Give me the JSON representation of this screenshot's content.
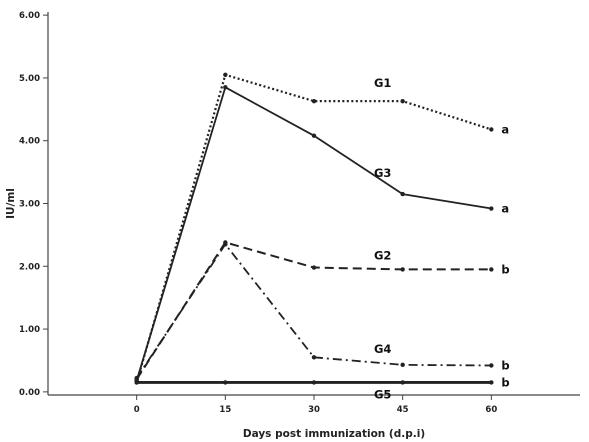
{
  "chart_data": {
    "type": "line",
    "title": "",
    "xlabel": "Days post immunization (d.p.i)",
    "ylabel": "IU/ml",
    "x": [
      0,
      15,
      30,
      45,
      60
    ],
    "xticks": [
      "0",
      "15",
      "30",
      "45",
      "60"
    ],
    "yticks": [
      "0.00",
      "1.00",
      "2.00",
      "3.00",
      "4.00",
      "5.00",
      "6.00"
    ],
    "xlim": [
      -15,
      75
    ],
    "ylim": [
      -0.05,
      6.05
    ],
    "grid": false,
    "legend": "none",
    "line_color": "#222222",
    "series": [
      {
        "name": "G1",
        "values": [
          0.15,
          5.05,
          4.63,
          4.63,
          4.18
        ],
        "style": "dotted",
        "significance": "a"
      },
      {
        "name": "G3",
        "values": [
          0.18,
          4.85,
          4.08,
          3.15,
          2.92
        ],
        "style": "solid",
        "significance": "a"
      },
      {
        "name": "G2",
        "values": [
          0.2,
          2.38,
          1.98,
          1.95,
          1.95
        ],
        "style": "dashed",
        "significance": "b"
      },
      {
        "name": "G4",
        "values": [
          0.22,
          2.35,
          0.55,
          0.43,
          0.42
        ],
        "style": "dashdot",
        "significance": "b"
      },
      {
        "name": "G5",
        "values": [
          0.15,
          0.15,
          0.15,
          0.15,
          0.15
        ],
        "style": "solid-thick",
        "significance": "b"
      }
    ]
  }
}
